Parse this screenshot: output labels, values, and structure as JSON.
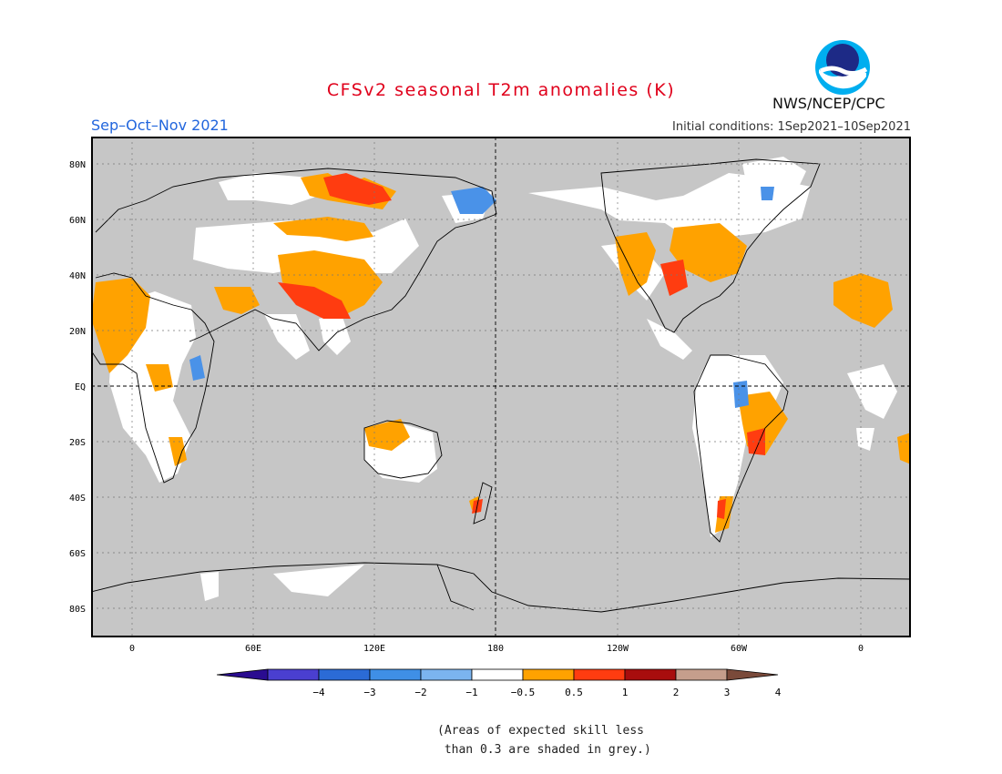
{
  "title": "CFSv2 seasonal T2m anomalies (K)",
  "season": "Sep–Oct–Nov 2021",
  "initial_conditions": "Initial conditions: 1Sep2021–10Sep2021",
  "agency": "NWS/NCEP/CPC",
  "logo_text": "NOAA",
  "lat_labels": [
    "80N",
    "60N",
    "40N",
    "20N",
    "EQ",
    "20S",
    "40S",
    "60S",
    "80S"
  ],
  "lon_labels": [
    "0",
    "60E",
    "120E",
    "180",
    "120W",
    "60W",
    "0"
  ],
  "colorbar": {
    "ticks": [
      "−4",
      "−3",
      "−2",
      "−1",
      "−0.5",
      "0.5",
      "1",
      "2",
      "3",
      "4"
    ],
    "colors": [
      "#2a0c90",
      "#4a3fd0",
      "#2b6bd6",
      "#3f8fe6",
      "#7bb4ef",
      "#ffffff",
      "#ffa200",
      "#ff3c10",
      "#a80d0d",
      "#c59e8c",
      "#7a4a3a"
    ]
  },
  "colors": {
    "background": "#c6c6c6",
    "land_neutral": "#ffffff",
    "warm": "#ffa200",
    "hot": "#ff3c10",
    "cold": "#4a92e8",
    "title": "#e0001b",
    "season": "#2266dd"
  },
  "footnote_line1": "(Areas of expected skill less",
  "footnote_line2": " than 0.3 are shaded in grey.)"
}
